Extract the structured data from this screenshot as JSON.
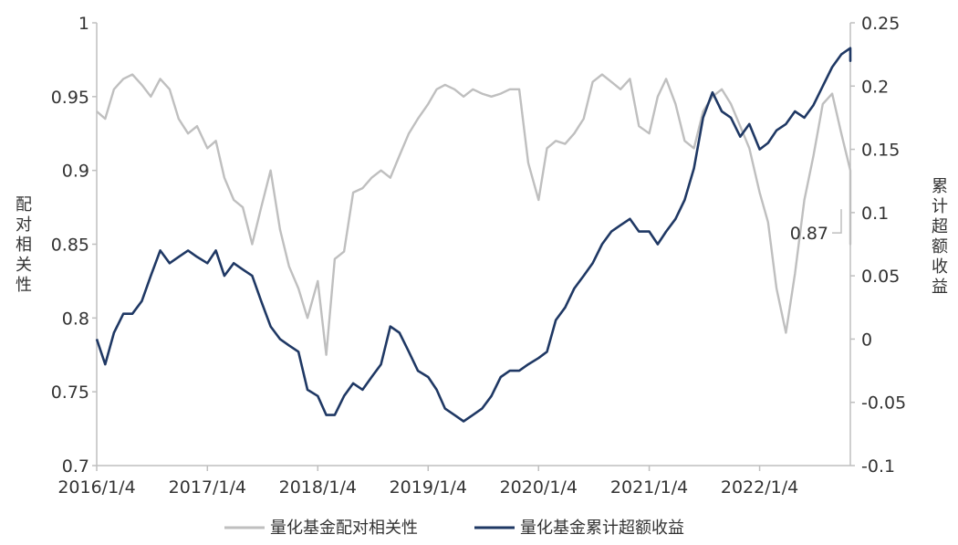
{
  "chart_data": {
    "type": "line",
    "title": "",
    "x_ticks": [
      "2016/1/4",
      "2017/1/4",
      "2018/1/4",
      "2019/1/4",
      "2020/1/4",
      "2021/1/4",
      "2022/1/4"
    ],
    "y_left": {
      "label": "配对相关性",
      "ylim": [
        0.7,
        1.0
      ],
      "ticks": [
        "0.7",
        "0.75",
        "0.8",
        "0.85",
        "0.9",
        "0.95",
        "1"
      ]
    },
    "y_right": {
      "label": "累计超额收益",
      "ylim": [
        -0.1,
        0.25
      ],
      "ticks": [
        "-0.1",
        "-0.05",
        "0",
        "0.05",
        "0.1",
        "0.15",
        "0.2",
        "0.25"
      ]
    },
    "x_range": [
      "2016/1/4",
      "2022/10/31"
    ],
    "series": [
      {
        "name": "量化基金配对相关性",
        "axis": "left",
        "color": "#bfbfbf",
        "points": [
          [
            "2016/1/4",
            0.94
          ],
          [
            "2016/2/1",
            0.935
          ],
          [
            "2016/3/1",
            0.955
          ],
          [
            "2016/4/1",
            0.962
          ],
          [
            "2016/5/1",
            0.965
          ],
          [
            "2016/6/1",
            0.958
          ],
          [
            "2016/7/1",
            0.95
          ],
          [
            "2016/8/1",
            0.962
          ],
          [
            "2016/9/1",
            0.955
          ],
          [
            "2016/10/1",
            0.935
          ],
          [
            "2016/11/1",
            0.925
          ],
          [
            "2016/12/1",
            0.93
          ],
          [
            "2017/1/4",
            0.915
          ],
          [
            "2017/2/1",
            0.92
          ],
          [
            "2017/3/1",
            0.895
          ],
          [
            "2017/4/1",
            0.88
          ],
          [
            "2017/5/1",
            0.875
          ],
          [
            "2017/6/1",
            0.85
          ],
          [
            "2017/7/1",
            0.875
          ],
          [
            "2017/8/1",
            0.9
          ],
          [
            "2017/9/1",
            0.86
          ],
          [
            "2017/10/1",
            0.835
          ],
          [
            "2017/11/1",
            0.82
          ],
          [
            "2017/12/1",
            0.8
          ],
          [
            "2018/1/4",
            0.825
          ],
          [
            "2018/2/1",
            0.775
          ],
          [
            "2018/3/1",
            0.84
          ],
          [
            "2018/4/1",
            0.845
          ],
          [
            "2018/5/1",
            0.885
          ],
          [
            "2018/6/1",
            0.888
          ],
          [
            "2018/7/1",
            0.895
          ],
          [
            "2018/8/1",
            0.9
          ],
          [
            "2018/9/1",
            0.895
          ],
          [
            "2018/10/1",
            0.91
          ],
          [
            "2018/11/1",
            0.925
          ],
          [
            "2018/12/1",
            0.935
          ],
          [
            "2019/1/4",
            0.945
          ],
          [
            "2019/2/1",
            0.955
          ],
          [
            "2019/3/1",
            0.958
          ],
          [
            "2019/4/1",
            0.955
          ],
          [
            "2019/5/1",
            0.95
          ],
          [
            "2019/6/1",
            0.955
          ],
          [
            "2019/7/1",
            0.952
          ],
          [
            "2019/8/1",
            0.95
          ],
          [
            "2019/9/1",
            0.952
          ],
          [
            "2019/10/1",
            0.955
          ],
          [
            "2019/11/1",
            0.955
          ],
          [
            "2019/12/1",
            0.905
          ],
          [
            "2020/1/4",
            0.88
          ],
          [
            "2020/2/1",
            0.915
          ],
          [
            "2020/3/1",
            0.92
          ],
          [
            "2020/4/1",
            0.918
          ],
          [
            "2020/5/1",
            0.925
          ],
          [
            "2020/6/1",
            0.935
          ],
          [
            "2020/7/1",
            0.96
          ],
          [
            "2020/8/1",
            0.965
          ],
          [
            "2020/9/1",
            0.96
          ],
          [
            "2020/10/1",
            0.955
          ],
          [
            "2020/11/1",
            0.962
          ],
          [
            "2020/12/1",
            0.93
          ],
          [
            "2021/1/4",
            0.925
          ],
          [
            "2021/2/1",
            0.95
          ],
          [
            "2021/3/1",
            0.962
          ],
          [
            "2021/4/1",
            0.945
          ],
          [
            "2021/5/1",
            0.92
          ],
          [
            "2021/6/1",
            0.915
          ],
          [
            "2021/7/1",
            0.94
          ],
          [
            "2021/8/1",
            0.95
          ],
          [
            "2021/9/1",
            0.955
          ],
          [
            "2021/10/1",
            0.945
          ],
          [
            "2021/11/1",
            0.93
          ],
          [
            "2021/12/1",
            0.915
          ],
          [
            "2022/1/4",
            0.885
          ],
          [
            "2022/2/1",
            0.865
          ],
          [
            "2022/3/1",
            0.82
          ],
          [
            "2022/4/1",
            0.79
          ],
          [
            "2022/5/1",
            0.83
          ],
          [
            "2022/6/1",
            0.88
          ],
          [
            "2022/7/1",
            0.91
          ],
          [
            "2022/8/1",
            0.945
          ],
          [
            "2022/9/1",
            0.952
          ],
          [
            "2022/10/1",
            0.925
          ],
          [
            "2022/11/1",
            0.9
          ],
          [
            "2022/12/1",
            0.855
          ],
          [
            "2023/1/1",
            0.85
          ],
          [
            "2023/2/1",
            0.87
          ]
        ]
      },
      {
        "name": "量化基金累计超额收益",
        "axis": "right",
        "color": "#1f3864",
        "points": [
          [
            "2016/1/4",
            0.0
          ],
          [
            "2016/2/1",
            -0.02
          ],
          [
            "2016/3/1",
            0.005
          ],
          [
            "2016/4/1",
            0.02
          ],
          [
            "2016/5/1",
            0.02
          ],
          [
            "2016/6/1",
            0.03
          ],
          [
            "2016/7/1",
            0.05
          ],
          [
            "2016/8/1",
            0.07
          ],
          [
            "2016/9/1",
            0.06
          ],
          [
            "2016/10/1",
            0.065
          ],
          [
            "2016/11/1",
            0.07
          ],
          [
            "2016/12/1",
            0.065
          ],
          [
            "2017/1/4",
            0.06
          ],
          [
            "2017/2/1",
            0.07
          ],
          [
            "2017/3/1",
            0.05
          ],
          [
            "2017/4/1",
            0.06
          ],
          [
            "2017/5/1",
            0.055
          ],
          [
            "2017/6/1",
            0.05
          ],
          [
            "2017/7/1",
            0.03
          ],
          [
            "2017/8/1",
            0.01
          ],
          [
            "2017/9/1",
            0.0
          ],
          [
            "2017/10/1",
            -0.005
          ],
          [
            "2017/11/1",
            -0.01
          ],
          [
            "2017/12/1",
            -0.04
          ],
          [
            "2018/1/4",
            -0.045
          ],
          [
            "2018/2/1",
            -0.06
          ],
          [
            "2018/3/1",
            -0.06
          ],
          [
            "2018/4/1",
            -0.045
          ],
          [
            "2018/5/1",
            -0.035
          ],
          [
            "2018/6/1",
            -0.04
          ],
          [
            "2018/7/1",
            -0.03
          ],
          [
            "2018/8/1",
            -0.02
          ],
          [
            "2018/9/1",
            0.01
          ],
          [
            "2018/10/1",
            0.005
          ],
          [
            "2018/11/1",
            -0.01
          ],
          [
            "2018/12/1",
            -0.025
          ],
          [
            "2019/1/4",
            -0.03
          ],
          [
            "2019/2/1",
            -0.04
          ],
          [
            "2019/3/1",
            -0.055
          ],
          [
            "2019/4/1",
            -0.06
          ],
          [
            "2019/5/1",
            -0.065
          ],
          [
            "2019/6/1",
            -0.06
          ],
          [
            "2019/7/1",
            -0.055
          ],
          [
            "2019/8/1",
            -0.045
          ],
          [
            "2019/9/1",
            -0.03
          ],
          [
            "2019/10/1",
            -0.025
          ],
          [
            "2019/11/1",
            -0.025
          ],
          [
            "2019/12/1",
            -0.02
          ],
          [
            "2020/1/4",
            -0.015
          ],
          [
            "2020/2/1",
            -0.01
          ],
          [
            "2020/3/1",
            0.015
          ],
          [
            "2020/4/1",
            0.025
          ],
          [
            "2020/5/1",
            0.04
          ],
          [
            "2020/6/1",
            0.05
          ],
          [
            "2020/7/1",
            0.06
          ],
          [
            "2020/8/1",
            0.075
          ],
          [
            "2020/9/1",
            0.085
          ],
          [
            "2020/10/1",
            0.09
          ],
          [
            "2020/11/1",
            0.095
          ],
          [
            "2020/12/1",
            0.085
          ],
          [
            "2021/1/4",
            0.085
          ],
          [
            "2021/2/1",
            0.075
          ],
          [
            "2021/3/1",
            0.085
          ],
          [
            "2021/4/1",
            0.095
          ],
          [
            "2021/5/1",
            0.11
          ],
          [
            "2021/6/1",
            0.135
          ],
          [
            "2021/7/1",
            0.175
          ],
          [
            "2021/8/1",
            0.195
          ],
          [
            "2021/9/1",
            0.18
          ],
          [
            "2021/10/1",
            0.175
          ],
          [
            "2021/11/1",
            0.16
          ],
          [
            "2021/12/1",
            0.17
          ],
          [
            "2022/1/4",
            0.15
          ],
          [
            "2022/2/1",
            0.155
          ],
          [
            "2022/3/1",
            0.165
          ],
          [
            "2022/4/1",
            0.17
          ],
          [
            "2022/5/1",
            0.18
          ],
          [
            "2022/6/1",
            0.175
          ],
          [
            "2022/7/1",
            0.185
          ],
          [
            "2022/8/1",
            0.2
          ],
          [
            "2022/9/1",
            0.215
          ],
          [
            "2022/10/1",
            0.225
          ],
          [
            "2022/11/1",
            0.23
          ],
          [
            "2022/12/1",
            0.22
          ],
          [
            "2023/1/1",
            0.225
          ],
          [
            "2023/2/1",
            0.23
          ]
        ]
      }
    ],
    "annotation": {
      "text": "0.87",
      "series": "量化基金配对相关性",
      "date": "2023/2/1",
      "value": 0.87
    },
    "legend": {
      "position": "bottom"
    },
    "grid": false
  }
}
